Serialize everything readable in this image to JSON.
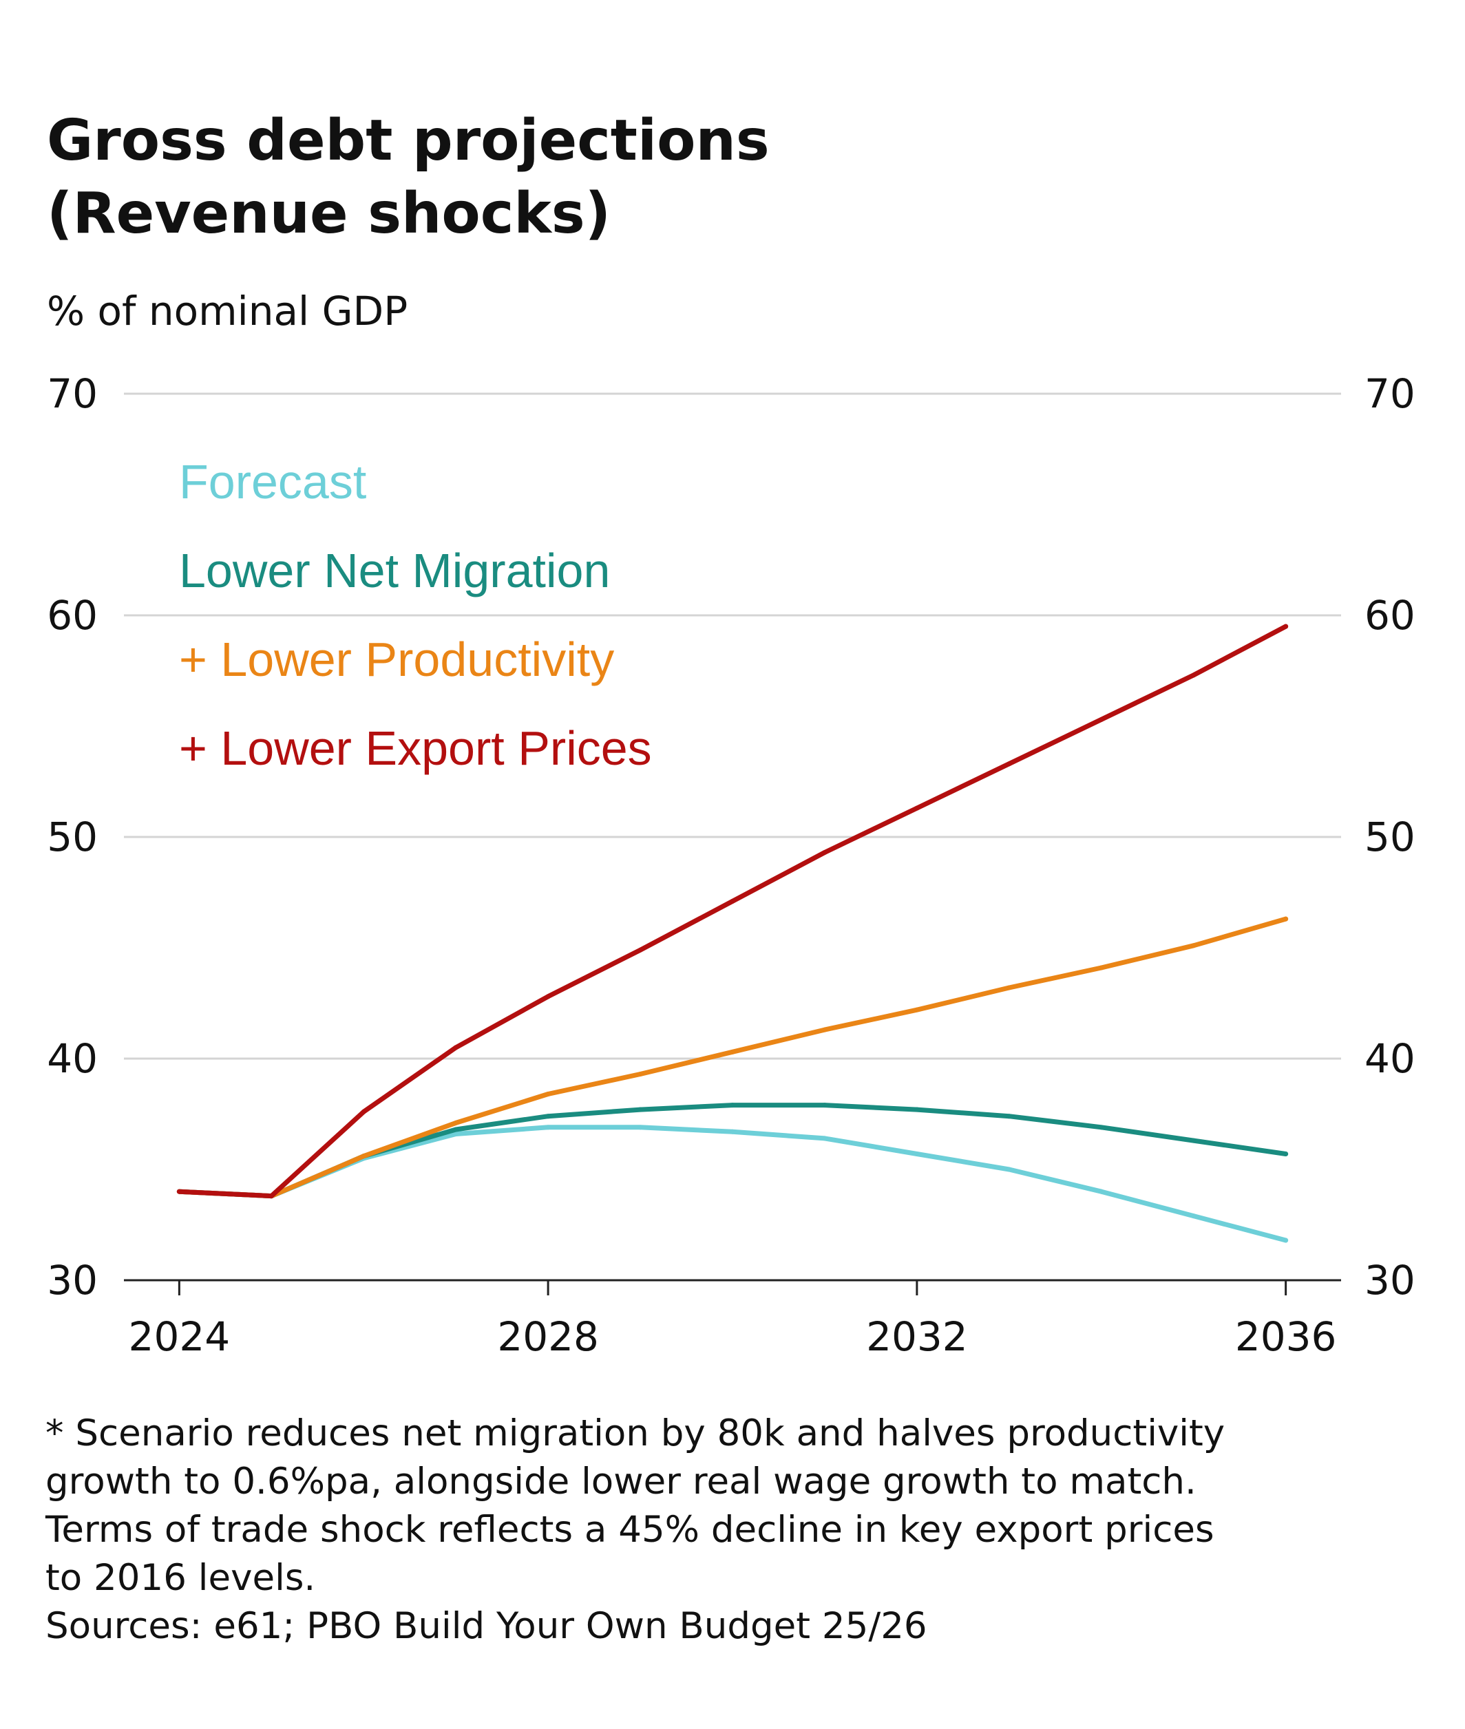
{
  "chart_data": {
    "type": "line",
    "title_lines": [
      "Gross debt projections",
      "(Revenue shocks)"
    ],
    "ylabel": "% of nominal GDP",
    "xlabel": "",
    "x": [
      2024,
      2025,
      2026,
      2027,
      2028,
      2029,
      2030,
      2031,
      2032,
      2033,
      2034,
      2035,
      2036
    ],
    "xlim": [
      2023.4,
      2036.6
    ],
    "ylim": [
      30,
      70
    ],
    "x_ticks": [
      "2024",
      "2028",
      "2032",
      "2036"
    ],
    "y_ticks": [
      "30",
      "40",
      "50",
      "60",
      "70"
    ],
    "grid": true,
    "legend_position": "top-left",
    "series": [
      {
        "name": "Forecast",
        "color": "#6dcfd8",
        "values": [
          34.0,
          33.8,
          35.5,
          36.6,
          36.9,
          36.9,
          36.7,
          36.4,
          35.7,
          35.0,
          34.0,
          32.9,
          31.8
        ]
      },
      {
        "name": "Lower Net Migration",
        "color": "#1a8c80",
        "values": [
          34.0,
          33.8,
          35.6,
          36.8,
          37.4,
          37.7,
          37.9,
          37.9,
          37.7,
          37.4,
          36.9,
          36.3,
          35.7
        ]
      },
      {
        "name": "+ Lower Productivity",
        "color": "#ea8516",
        "values": [
          34.0,
          33.8,
          35.6,
          37.1,
          38.4,
          39.3,
          40.3,
          41.3,
          42.2,
          43.2,
          44.1,
          45.1,
          46.3
        ]
      },
      {
        "name": "+ Lower Export Prices",
        "color": "#b30f0f",
        "values": [
          34.0,
          33.8,
          37.6,
          40.5,
          42.8,
          44.9,
          47.1,
          49.3,
          51.3,
          53.3,
          55.3,
          57.3,
          59.5
        ]
      }
    ],
    "notes": [
      "* Scenario reduces net migration by 80k and halves productivity",
      "growth to 0.6%pa, alongside lower real wage growth to match.",
      "Terms of trade shock reflects a 45% decline in key export prices",
      "to 2016 levels.",
      "Sources: e61; PBO Build Your Own Budget 25/26"
    ]
  }
}
